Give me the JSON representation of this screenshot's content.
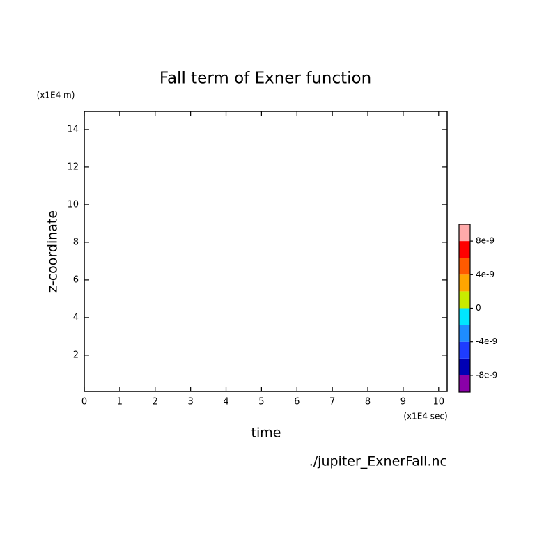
{
  "chart_data": {
    "type": "contour",
    "title": "Fall term of Exner function",
    "x_label": "time",
    "x_unit": "(x1E4 sec)",
    "y_label": "z-coordinate",
    "y_unit": "(x1E4 m)",
    "source": "./jupiter_ExnerFall.nc",
    "xlim": [
      0,
      10.24
    ],
    "xticks": [
      0,
      1,
      2,
      3,
      4,
      5,
      6,
      7,
      8,
      9,
      10
    ],
    "ylim": [
      0.07,
      14.96
    ],
    "yticks": [
      2,
      4,
      6,
      8,
      10,
      12,
      14
    ],
    "colorbar": {
      "lim": [
        -1e-08,
        1e-08
      ],
      "ticks": [
        -8e-09,
        -4e-09,
        0,
        4e-09,
        8e-09
      ],
      "colors": [
        "#8a00a8",
        "#0000b4",
        "#1e3cff",
        "#1e8cff",
        "#00e6ff",
        "#c8eb00",
        "#ffa500",
        "#ff5a00",
        "#ff0000",
        "#ffaaaa"
      ]
    }
  }
}
